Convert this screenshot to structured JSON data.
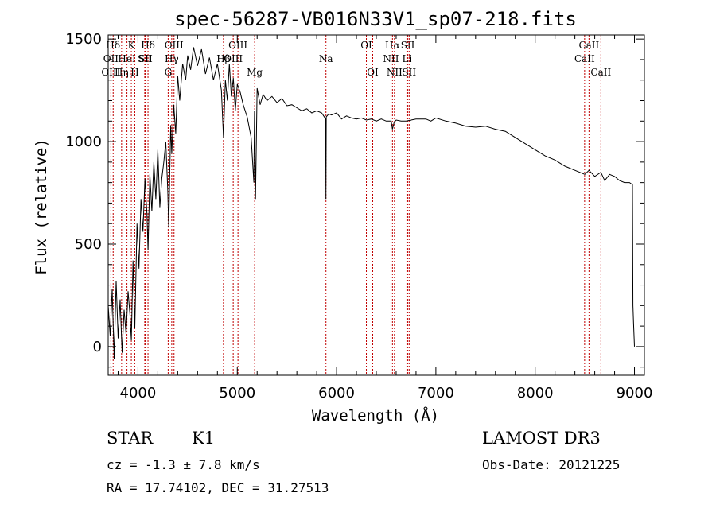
{
  "chart_data": {
    "type": "line",
    "title": "spec-56287-VB016N33V1_sp07-218.fits",
    "xlabel": "Wavelength (Å)",
    "ylabel": "Flux (relative)",
    "xlim": [
      3700,
      9100
    ],
    "ylim": [
      -140,
      1520
    ],
    "x_ticks": [
      4000,
      5000,
      6000,
      7000,
      8000,
      9000
    ],
    "y_ticks": [
      0,
      500,
      1000,
      1500
    ],
    "grid": false,
    "series": [
      {
        "x": [
          3700,
          3720,
          3740,
          3760,
          3780,
          3800,
          3820,
          3840,
          3860,
          3880,
          3900,
          3920,
          3933,
          3950,
          3968,
          3990,
          4010,
          4030,
          4050,
          4070,
          4090,
          4101,
          4120,
          4140,
          4160,
          4180,
          4200,
          4220,
          4240,
          4260,
          4280,
          4300,
          4310,
          4330,
          4340,
          4360,
          4380,
          4400,
          4420,
          4450,
          4480,
          4500,
          4530,
          4560,
          4600,
          4640,
          4680,
          4720,
          4760,
          4800,
          4840,
          4861,
          4880,
          4900,
          4920,
          4940,
          4960,
          4980,
          5000,
          5030,
          5060,
          5100,
          5140,
          5167,
          5173,
          5184,
          5200,
          5230,
          5260,
          5300,
          5350,
          5400,
          5450,
          5500,
          5550,
          5600,
          5650,
          5700,
          5750,
          5800,
          5850,
          5890,
          5893,
          5896,
          5920,
          5950,
          6000,
          6050,
          6100,
          6150,
          6200,
          6250,
          6300,
          6350,
          6400,
          6450,
          6500,
          6550,
          6563,
          6580,
          6600,
          6650,
          6700,
          6750,
          6800,
          6850,
          6900,
          6950,
          7000,
          7100,
          7200,
          7300,
          7400,
          7500,
          7600,
          7700,
          7800,
          7900,
          8000,
          8100,
          8200,
          8300,
          8400,
          8500,
          8542,
          8600,
          8662,
          8700,
          8750,
          8800,
          8850,
          8900,
          8950,
          8980,
          8985,
          8990,
          9000
        ],
        "y": [
          200,
          50,
          280,
          -60,
          320,
          40,
          230,
          -30,
          180,
          60,
          270,
          150,
          30,
          420,
          90,
          600,
          380,
          720,
          560,
          820,
          650,
          470,
          840,
          660,
          900,
          720,
          960,
          680,
          820,
          900,
          1000,
          760,
          580,
          1080,
          940,
          1180,
          1040,
          1320,
          1200,
          1380,
          1300,
          1420,
          1350,
          1460,
          1370,
          1450,
          1330,
          1410,
          1300,
          1380,
          1250,
          1020,
          1300,
          1200,
          1380,
          1220,
          1310,
          1150,
          1280,
          1240,
          1180,
          1120,
          1020,
          800,
          1150,
          720,
          1260,
          1180,
          1230,
          1200,
          1220,
          1190,
          1210,
          1175,
          1180,
          1165,
          1150,
          1160,
          1140,
          1150,
          1140,
          1110,
          720,
          1120,
          1135,
          1130,
          1140,
          1110,
          1125,
          1115,
          1110,
          1115,
          1105,
          1110,
          1100,
          1110,
          1100,
          1100,
          1060,
          1095,
          1105,
          1100,
          1100,
          1105,
          1110,
          1110,
          1110,
          1100,
          1115,
          1100,
          1090,
          1075,
          1070,
          1075,
          1060,
          1050,
          1020,
          990,
          960,
          930,
          910,
          880,
          860,
          840,
          860,
          830,
          850,
          810,
          840,
          830,
          810,
          800,
          800,
          790,
          200,
          120,
          0
        ]
      }
    ],
    "line_markers": [
      {
        "label": "Hδ",
        "wavelength": 3750,
        "row": 1
      },
      {
        "label": "OII",
        "wavelength": 3727,
        "row": 2
      },
      {
        "label": "OIII",
        "wavelength": 3727,
        "row": 3
      },
      {
        "label": "HeI",
        "wavelength": 3889,
        "row": 2
      },
      {
        "label": "Hη",
        "wavelength": 3835,
        "row": 3
      },
      {
        "label": "K",
        "wavelength": 3933,
        "row": 1
      },
      {
        "label": "SII",
        "wavelength": 4068,
        "row": 2
      },
      {
        "label": "H",
        "wavelength": 3968,
        "row": 3
      },
      {
        "label": "Hδ",
        "wavelength": 4101,
        "row": 1
      },
      {
        "label": "SII",
        "wavelength": 4076,
        "row": 2
      },
      {
        "label": "OIII",
        "wavelength": 4363,
        "row": 1
      },
      {
        "label": "Hγ",
        "wavelength": 4340,
        "row": 2
      },
      {
        "label": "G",
        "wavelength": 4304,
        "row": 3
      },
      {
        "label": "OIII",
        "wavelength": 5007,
        "row": 1
      },
      {
        "label": "OIII",
        "wavelength": 4959,
        "row": 2
      },
      {
        "label": "Hβ",
        "wavelength": 4861,
        "row": 2
      },
      {
        "label": "Mg",
        "wavelength": 5175,
        "row": 3
      },
      {
        "label": "Na",
        "wavelength": 5893,
        "row": 2
      },
      {
        "label": "OI",
        "wavelength": 6300,
        "row": 1
      },
      {
        "label": "OI",
        "wavelength": 6364,
        "row": 3
      },
      {
        "label": "Hα",
        "wavelength": 6563,
        "row": 1
      },
      {
        "label": "NII",
        "wavelength": 6548,
        "row": 2
      },
      {
        "label": "NII",
        "wavelength": 6583,
        "row": 3
      },
      {
        "label": "SII",
        "wavelength": 6717,
        "row": 1
      },
      {
        "label": "Li",
        "wavelength": 6708,
        "row": 2
      },
      {
        "label": "SII",
        "wavelength": 6731,
        "row": 3
      },
      {
        "label": "CaII",
        "wavelength": 8542,
        "row": 1
      },
      {
        "label": "CaII",
        "wavelength": 8498,
        "row": 2
      },
      {
        "label": "CaII",
        "wavelength": 8662,
        "row": 3
      }
    ]
  },
  "info": {
    "object_class": "STAR",
    "subclass": "K1",
    "redshift": "cz = -1.3 ± 7.8 km/s",
    "coords": "RA =  17.74102, DEC =  31.27513",
    "survey": "LAMOST DR3",
    "obs_date": "Obs-Date: 20121225"
  }
}
